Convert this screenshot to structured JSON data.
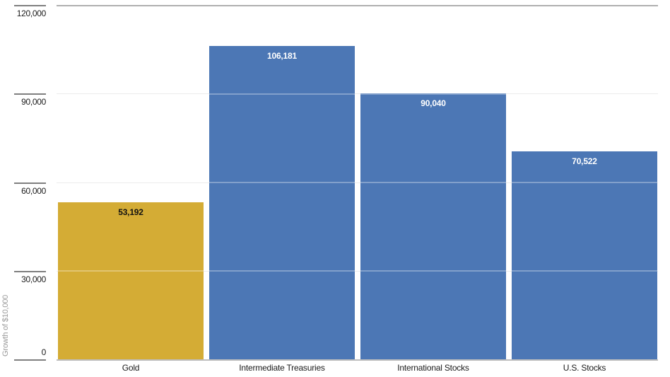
{
  "chart_data": {
    "type": "bar",
    "title": "",
    "xlabel": "",
    "ylabel": "Growth of $10,000",
    "categories": [
      "Gold",
      "Intermediate Treasuries",
      "International Stocks",
      "U.S. Stocks"
    ],
    "values": [
      53192,
      106181,
      90040,
      70522
    ],
    "value_labels": [
      "53,192",
      "106,181",
      "90,040",
      "70,522"
    ],
    "bar_colors": [
      "#D4AC35",
      "#4C77B5",
      "#4C77B5",
      "#4C77B5"
    ],
    "value_label_colors": [
      "#111111",
      "#FFFFFF",
      "#FFFFFF",
      "#FFFFFF"
    ],
    "ylim": [
      0,
      120000
    ],
    "yticks": [
      0,
      30000,
      60000,
      90000,
      120000
    ],
    "ytick_labels": [
      "0",
      "30,000",
      "60,000",
      "90,000",
      "120,000"
    ],
    "grid": "horizontal",
    "legend": "none"
  },
  "colors": {
    "background": "#FFFFFF",
    "gridline_mid": "#E3E3E3",
    "gridline_top": "#AFAFAF",
    "baseline": "#BDBDBD",
    "tick_mark": "#7F7F7F",
    "axis_text": "#1A1A1A",
    "y_title_text": "#9A9A9A"
  }
}
